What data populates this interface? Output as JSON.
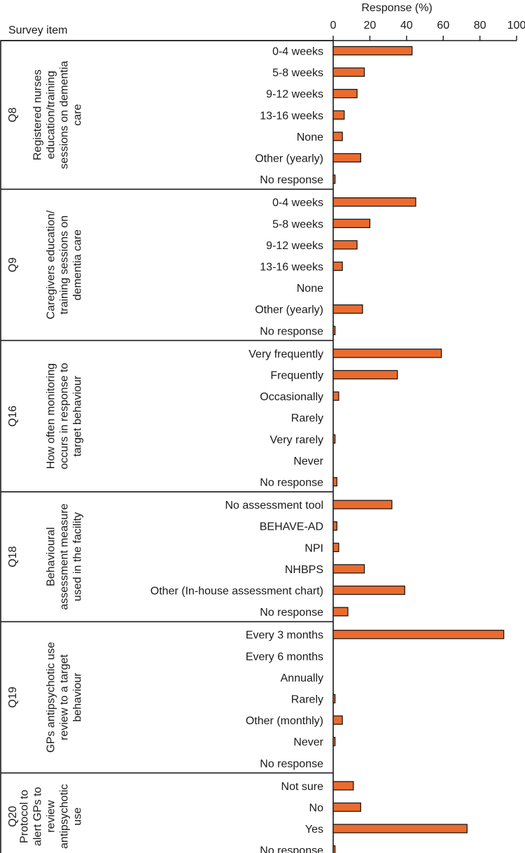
{
  "chart_data": {
    "type": "bar",
    "orientation": "horizontal",
    "xlabel": "Response (%)",
    "row_header": "Survey item",
    "xlim": [
      0,
      100
    ],
    "xticks": [
      "0",
      "20",
      "40",
      "60",
      "80",
      "100"
    ],
    "bar_color": "#EB6B2E",
    "groups": [
      {
        "code": "Q8",
        "label_lines": [
          "Registered nurses",
          "education/training",
          "sessions on dementia",
          "care"
        ],
        "categories": [
          "0-4 weeks",
          "5-8 weeks",
          "9-12 weeks",
          "13-16 weeks",
          "None",
          "Other (yearly)",
          "No response"
        ],
        "values": [
          43,
          17,
          13,
          6,
          5,
          15,
          1
        ]
      },
      {
        "code": "Q9",
        "label_lines": [
          "Caregivers education/",
          "training sessions on",
          "dementia care"
        ],
        "categories": [
          "0-4 weeks",
          "5-8 weeks",
          "9-12 weeks",
          "13-16 weeks",
          "None",
          "Other (yearly)",
          "No response"
        ],
        "values": [
          45,
          20,
          13,
          5,
          0,
          16,
          1
        ]
      },
      {
        "code": "Q16",
        "label_lines": [
          "How often monitoring",
          "occurs in response to",
          "target behaviour"
        ],
        "categories": [
          "Very frequently",
          "Frequently",
          "Occasionally",
          "Rarely",
          "Very rarely",
          "Never",
          "No response"
        ],
        "values": [
          59,
          35,
          3,
          0,
          1,
          0,
          2
        ]
      },
      {
        "code": "Q18",
        "label_lines": [
          "Behavioural",
          "assessment measure",
          "used in the facility"
        ],
        "categories": [
          "No assessment tool",
          "BEHAVE-AD",
          "NPI",
          "NHBPS",
          "Other (In-house assessment chart)",
          "No response"
        ],
        "values": [
          32,
          2,
          3,
          17,
          39,
          8
        ]
      },
      {
        "code": "Q19",
        "label_lines": [
          "GPs antipsychotic use",
          "review to a target",
          "behaviour"
        ],
        "categories": [
          "Every 3 months",
          "Every 6 months",
          "Annually",
          "Rarely",
          "Other (monthly)",
          "Never",
          "No response"
        ],
        "values": [
          93,
          0,
          0,
          1,
          5,
          1,
          0
        ]
      },
      {
        "code": "Q20",
        "label_lines": [
          "Protocol to",
          "alert GPs to",
          "review",
          "antipsychotic",
          "use"
        ],
        "categories": [
          "Not sure",
          "No",
          "Yes",
          "No response"
        ],
        "values": [
          11,
          15,
          73,
          1
        ]
      }
    ]
  }
}
